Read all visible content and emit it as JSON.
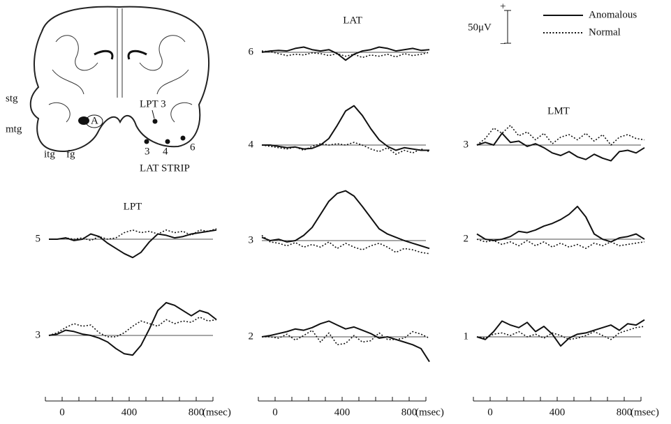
{
  "diagram": {
    "labels": [
      "stg",
      "mtg",
      "itg",
      "fg",
      "A",
      "LPT 3",
      "3",
      "4",
      "6",
      "LAT STRIP"
    ]
  },
  "legend": [
    {
      "name": "Anomalous",
      "style": "solid",
      "color": "#111111"
    },
    {
      "name": "Normal",
      "style": "dotted",
      "color": "#111111"
    }
  ],
  "scale_bar": {
    "value": 50,
    "label": "50μV",
    "plus": "+",
    "minus": "−"
  },
  "chart_data": [
    {
      "type": "line",
      "title": "LPT",
      "xlabel": "(msec)",
      "xlim": [
        -100,
        900
      ],
      "xticks": [
        0,
        400,
        800
      ],
      "xminorticks": [
        -100,
        0,
        100,
        200,
        300,
        400,
        500,
        600,
        700,
        800,
        900
      ],
      "x": [
        -100,
        -50,
        0,
        50,
        100,
        150,
        200,
        250,
        300,
        350,
        400,
        450,
        500,
        550,
        600,
        650,
        700,
        750,
        800,
        850,
        900
      ],
      "panels": [
        {
          "label": "5",
          "series": [
            {
              "values": [
                0,
                0,
                2,
                -2,
                0,
                8,
                4,
                -6,
                -14,
                -22,
                -28,
                -20,
                -4,
                8,
                6,
                2,
                4,
                8,
                10,
                12,
                14
              ]
            },
            {
              "values": [
                0,
                0,
                2,
                0,
                2,
                -2,
                4,
                0,
                2,
                10,
                14,
                10,
                12,
                8,
                14,
                10,
                12,
                6,
                14,
                12,
                16
              ]
            }
          ]
        },
        {
          "label": "3",
          "series": [
            {
              "values": [
                0,
                2,
                8,
                6,
                2,
                0,
                -4,
                -10,
                -20,
                -28,
                -30,
                -15,
                10,
                38,
                50,
                46,
                38,
                30,
                38,
                34,
                24
              ]
            },
            {
              "values": [
                0,
                4,
                12,
                18,
                14,
                16,
                4,
                -2,
                -2,
                4,
                14,
                22,
                18,
                14,
                24,
                18,
                22,
                20,
                28,
                22,
                24
              ]
            }
          ]
        }
      ]
    },
    {
      "type": "line",
      "title": "LAT",
      "xlabel": "(msec)",
      "xlim": [
        -100,
        900
      ],
      "xticks": [
        0,
        400,
        800
      ],
      "xminorticks": [
        -100,
        0,
        100,
        200,
        300,
        400,
        500,
        600,
        700,
        800,
        900
      ],
      "x": [
        -100,
        -50,
        0,
        50,
        100,
        150,
        200,
        250,
        300,
        350,
        400,
        450,
        500,
        550,
        600,
        650,
        700,
        750,
        800,
        850,
        900
      ],
      "panels": [
        {
          "label": "6",
          "series": [
            {
              "values": [
                0,
                2,
                3,
                2,
                6,
                8,
                4,
                2,
                4,
                -2,
                -12,
                -3,
                2,
                4,
                8,
                6,
                2,
                4,
                6,
                3,
                4
              ]
            },
            {
              "values": [
                2,
                1,
                -2,
                -5,
                -3,
                -4,
                -1,
                -2,
                -5,
                -2,
                -6,
                -3,
                -8,
                -4,
                -6,
                -3,
                -7,
                -2,
                -5,
                -3,
                0
              ]
            }
          ]
        },
        {
          "label": "4",
          "series": [
            {
              "values": [
                0,
                0,
                -2,
                -4,
                -3,
                -6,
                -5,
                0,
                10,
                30,
                52,
                60,
                45,
                25,
                8,
                -2,
                -8,
                -4,
                -6,
                -8,
                -8
              ]
            },
            {
              "values": [
                0,
                -2,
                -4,
                -6,
                -3,
                -8,
                -2,
                2,
                0,
                2,
                0,
                4,
                0,
                -6,
                -10,
                -4,
                -14,
                -8,
                -12,
                -6,
                -10
              ]
            }
          ]
        },
        {
          "label": "3",
          "series": [
            {
              "values": [
                5,
                0,
                2,
                -2,
                0,
                8,
                20,
                40,
                60,
                72,
                76,
                68,
                52,
                35,
                18,
                10,
                5,
                0,
                -4,
                -8,
                -12
              ]
            },
            {
              "values": [
                8,
                -2,
                -4,
                -8,
                -3,
                -10,
                -6,
                -10,
                -2,
                -12,
                -4,
                -10,
                -14,
                -8,
                -4,
                -10,
                -18,
                -12,
                -14,
                -18,
                -20
              ]
            }
          ]
        },
        {
          "label": "2",
          "series": [
            {
              "values": [
                0,
                2,
                5,
                8,
                12,
                10,
                14,
                20,
                24,
                18,
                12,
                15,
                10,
                5,
                -2,
                0,
                -4,
                -8,
                -12,
                -18,
                -38
              ]
            },
            {
              "values": [
                0,
                0,
                -2,
                4,
                -5,
                2,
                10,
                -8,
                6,
                -12,
                -10,
                2,
                -8,
                -6,
                6,
                -4,
                -4,
                -2,
                8,
                4,
                -2
              ]
            }
          ]
        }
      ]
    },
    {
      "type": "line",
      "title": "LMT",
      "xlabel": "(msec)",
      "xlim": [
        -100,
        900
      ],
      "xticks": [
        0,
        400,
        800
      ],
      "xminorticks": [
        -100,
        0,
        100,
        200,
        300,
        400,
        500,
        600,
        700,
        800,
        900
      ],
      "x": [
        -100,
        -50,
        0,
        50,
        100,
        150,
        200,
        250,
        300,
        350,
        400,
        450,
        500,
        550,
        600,
        650,
        700,
        750,
        800,
        850,
        900
      ],
      "panels": [
        {
          "label": "3",
          "series": [
            {
              "values": [
                0,
                4,
                0,
                18,
                4,
                6,
                -2,
                2,
                -4,
                -12,
                -16,
                -10,
                -18,
                -22,
                -14,
                -20,
                -24,
                -10,
                -8,
                -12,
                -4
              ]
            },
            {
              "values": [
                0,
                10,
                26,
                18,
                30,
                14,
                20,
                8,
                18,
                2,
                12,
                16,
                8,
                18,
                6,
                16,
                0,
                12,
                16,
                10,
                8
              ]
            }
          ]
        },
        {
          "label": "2",
          "series": [
            {
              "values": [
                8,
                0,
                -2,
                0,
                4,
                12,
                10,
                14,
                20,
                24,
                30,
                38,
                50,
                34,
                8,
                0,
                -4,
                2,
                4,
                8,
                0
              ]
            },
            {
              "values": [
                0,
                -4,
                -2,
                -8,
                -4,
                -10,
                -2,
                -10,
                -4,
                -12,
                -6,
                -12,
                -8,
                -14,
                -6,
                -10,
                -4,
                -10,
                -8,
                -6,
                -4
              ]
            }
          ]
        },
        {
          "label": "1",
          "series": [
            {
              "values": [
                0,
                -4,
                8,
                24,
                18,
                14,
                22,
                8,
                16,
                4,
                -14,
                -2,
                4,
                6,
                10,
                14,
                18,
                10,
                20,
                18,
                26
              ]
            },
            {
              "values": [
                0,
                -2,
                4,
                6,
                2,
                8,
                0,
                4,
                -2,
                6,
                2,
                -4,
                -2,
                2,
                8,
                2,
                -4,
                6,
                10,
                14,
                16
              ]
            }
          ]
        }
      ]
    }
  ]
}
